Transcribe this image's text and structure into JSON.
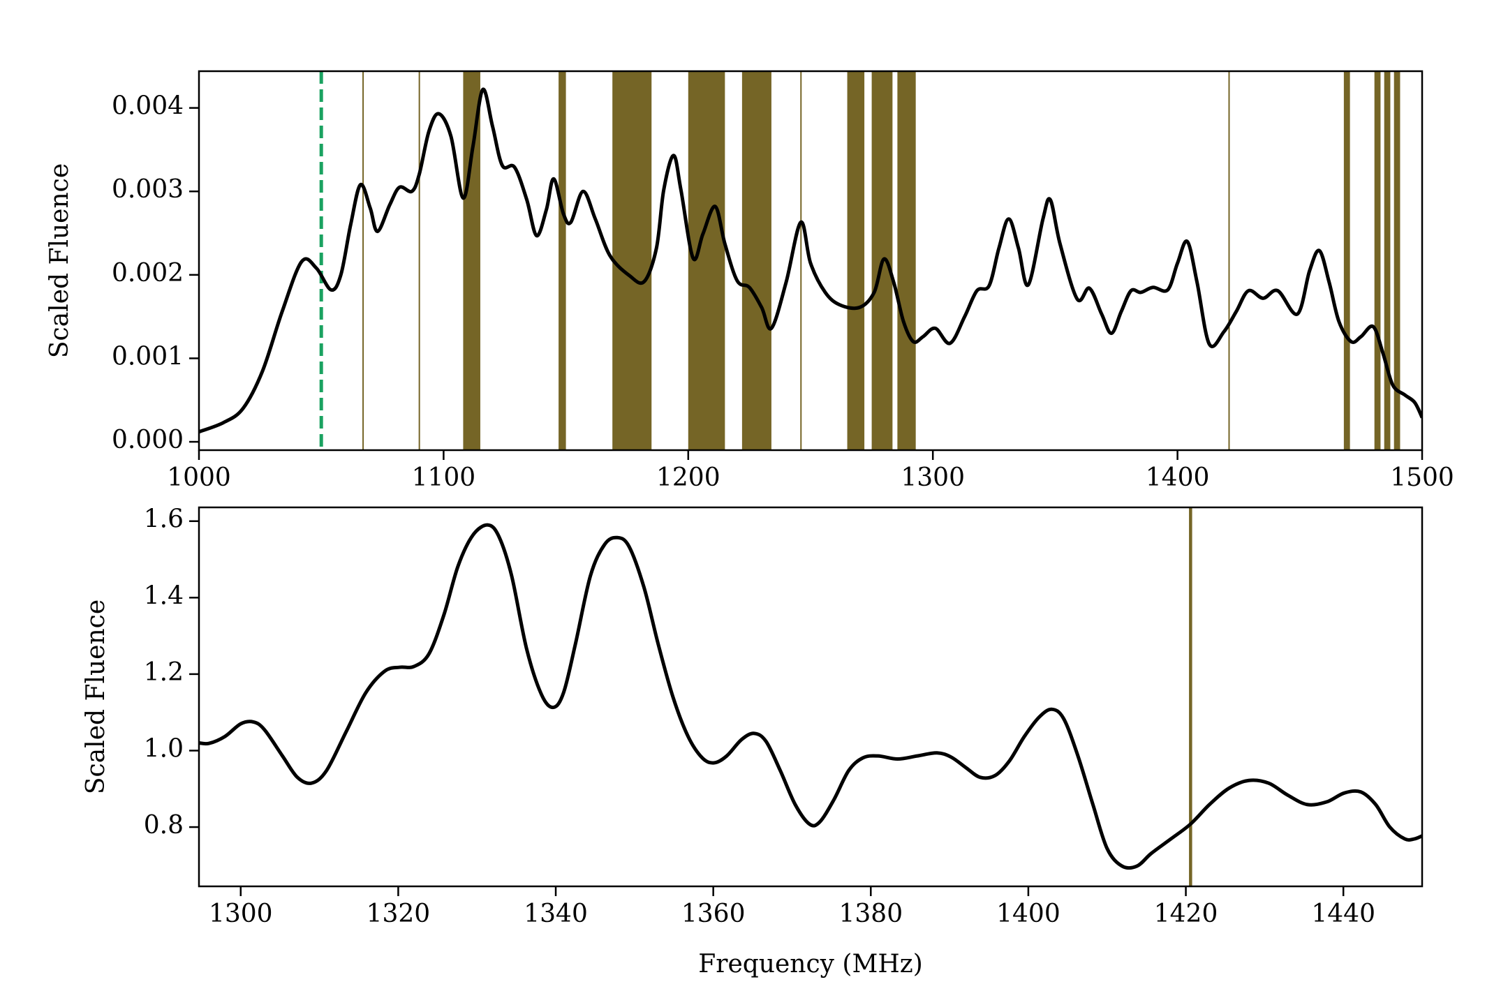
{
  "chart_data": [
    {
      "type": "line",
      "ylabel": "Scaled Fluence",
      "color": "#000000",
      "x": [
        1000,
        1010,
        1018,
        1026,
        1034,
        1042,
        1048,
        1054,
        1058,
        1062,
        1066,
        1070,
        1073,
        1078,
        1082,
        1087,
        1090,
        1094,
        1098,
        1103,
        1108,
        1112,
        1116,
        1120,
        1124,
        1129,
        1134,
        1138,
        1142,
        1145,
        1149,
        1152,
        1157,
        1162,
        1168,
        1176,
        1182,
        1187,
        1190,
        1194,
        1197,
        1202,
        1206,
        1211,
        1215,
        1220,
        1225,
        1230,
        1234,
        1240,
        1246,
        1250,
        1256,
        1262,
        1270,
        1276,
        1280,
        1284,
        1288,
        1292,
        1296,
        1301,
        1307,
        1313,
        1318,
        1323,
        1327,
        1331,
        1335,
        1339,
        1345,
        1348,
        1352,
        1359,
        1364,
        1369,
        1373,
        1377,
        1381,
        1385,
        1390,
        1396,
        1400,
        1404,
        1408,
        1413,
        1419,
        1424,
        1429,
        1435,
        1441,
        1449,
        1454,
        1458,
        1462,
        1466,
        1471,
        1475,
        1480,
        1484,
        1488,
        1493,
        1497,
        1500
      ],
      "values": [
        0.00012,
        0.00023,
        0.0004,
        0.00085,
        0.00156,
        0.00216,
        0.00208,
        0.00182,
        0.002,
        0.0026,
        0.00308,
        0.0028,
        0.00252,
        0.00284,
        0.00305,
        0.003,
        0.0032,
        0.00372,
        0.00393,
        0.00366,
        0.00292,
        0.00354,
        0.00422,
        0.00378,
        0.00331,
        0.00329,
        0.0029,
        0.00247,
        0.00278,
        0.00315,
        0.00273,
        0.00263,
        0.003,
        0.00267,
        0.00223,
        0.00199,
        0.00192,
        0.00232,
        0.00302,
        0.00343,
        0.00302,
        0.0022,
        0.00249,
        0.00282,
        0.00237,
        0.00193,
        0.00185,
        0.00161,
        0.00136,
        0.00191,
        0.00263,
        0.00214,
        0.00179,
        0.00164,
        0.00161,
        0.00179,
        0.00219,
        0.00191,
        0.00144,
        0.0012,
        0.00126,
        0.00136,
        0.00118,
        0.0015,
        0.00181,
        0.00187,
        0.00232,
        0.00267,
        0.00232,
        0.00188,
        0.00267,
        0.0029,
        0.00237,
        0.00171,
        0.00184,
        0.00153,
        0.0013,
        0.00156,
        0.00181,
        0.00179,
        0.00185,
        0.00182,
        0.00214,
        0.0024,
        0.00191,
        0.00117,
        0.00132,
        0.00156,
        0.00181,
        0.00172,
        0.00181,
        0.00153,
        0.00205,
        0.00229,
        0.00191,
        0.00144,
        0.0012,
        0.00126,
        0.00138,
        0.00106,
        0.00068,
        0.00056,
        0.00047,
        0.00029
      ],
      "xlim": [
        1000,
        1500
      ],
      "xticks": [
        1000,
        1100,
        1200,
        1300,
        1400,
        1500
      ],
      "ylim": [
        -0.0001,
        0.00444
      ],
      "yticks": [
        {
          "value": 0,
          "label": "0.000"
        },
        0.001,
        0.002,
        0.003,
        0.004
      ],
      "bands": [
        [
          1066.8,
          1067.2
        ],
        [
          1089.8,
          1090.3
        ],
        [
          1108,
          1115
        ],
        [
          1147,
          1150
        ],
        [
          1169,
          1185
        ],
        [
          1200,
          1215
        ],
        [
          1222,
          1234
        ],
        [
          1245.8,
          1246.3
        ],
        [
          1265,
          1272
        ],
        [
          1275,
          1283.5
        ],
        [
          1285.5,
          1293
        ],
        [
          1420.8,
          1421.3
        ],
        [
          1468,
          1470.5
        ],
        [
          1480.5,
          1483
        ],
        [
          1484.5,
          1487
        ],
        [
          1488.5,
          1491
        ]
      ],
      "band_color": "#6e5d1a",
      "vlines": [
        1050
      ],
      "vline_color": "#1aa260"
    },
    {
      "type": "line",
      "ylabel": "Scaled Fluence",
      "xlabel": "Frequency (MHz)",
      "color": "#000000",
      "x": [
        1294.7,
        1296,
        1298,
        1300,
        1301.6,
        1303,
        1305.3,
        1307.2,
        1309,
        1310.9,
        1313.4,
        1315.9,
        1318.3,
        1320.2,
        1322,
        1323.9,
        1325.8,
        1327.6,
        1329.5,
        1331.4,
        1332.8,
        1334.4,
        1336.3,
        1338.2,
        1339.7,
        1341,
        1342.5,
        1344.4,
        1346.2,
        1347.8,
        1349.3,
        1351.2,
        1353,
        1354.9,
        1356.8,
        1358.6,
        1360.1,
        1361.7,
        1363.6,
        1365.2,
        1366.7,
        1368.5,
        1370.4,
        1372.2,
        1373.5,
        1375.3,
        1377.2,
        1379,
        1380.9,
        1383.4,
        1385.9,
        1388.4,
        1390.2,
        1392.1,
        1393.9,
        1395.8,
        1397.6,
        1399.5,
        1401.4,
        1403,
        1404.5,
        1406.3,
        1408.2,
        1410,
        1411.9,
        1413.8,
        1415.6,
        1418.1,
        1420.6,
        1423,
        1425.5,
        1428,
        1430.5,
        1432.9,
        1435.4,
        1437.9,
        1440.1,
        1442.2,
        1444.1,
        1445.9,
        1447.8,
        1449,
        1450
      ],
      "values": [
        1.02,
        1.019,
        1.037,
        1.07,
        1.075,
        1.055,
        0.986,
        0.93,
        0.915,
        0.948,
        1.05,
        1.152,
        1.208,
        1.218,
        1.22,
        1.253,
        1.355,
        1.483,
        1.564,
        1.59,
        1.559,
        1.457,
        1.266,
        1.146,
        1.113,
        1.152,
        1.279,
        1.457,
        1.539,
        1.557,
        1.534,
        1.427,
        1.279,
        1.139,
        1.037,
        0.981,
        0.968,
        0.986,
        1.029,
        1.045,
        1.024,
        0.948,
        0.859,
        0.808,
        0.813,
        0.871,
        0.948,
        0.981,
        0.986,
        0.978,
        0.986,
        0.994,
        0.983,
        0.955,
        0.93,
        0.935,
        0.973,
        1.037,
        1.088,
        1.108,
        1.083,
        0.986,
        0.859,
        0.744,
        0.698,
        0.698,
        0.731,
        0.769,
        0.808,
        0.859,
        0.902,
        0.922,
        0.915,
        0.884,
        0.859,
        0.866,
        0.889,
        0.892,
        0.859,
        0.8,
        0.769,
        0.769,
        0.777
      ],
      "xlim": [
        1294.7,
        1450
      ],
      "xticks": [
        1300,
        1320,
        1340,
        1360,
        1380,
        1400,
        1420,
        1440
      ],
      "ylim": [
        0.645,
        1.636
      ],
      "yticks": [
        0.8,
        {
          "value": 1.0,
          "label": "1.0"
        },
        1.2,
        1.4,
        1.6
      ],
      "bands": [
        [
          1420.4,
          1420.8
        ]
      ],
      "band_color": "#6e5d1a"
    }
  ]
}
